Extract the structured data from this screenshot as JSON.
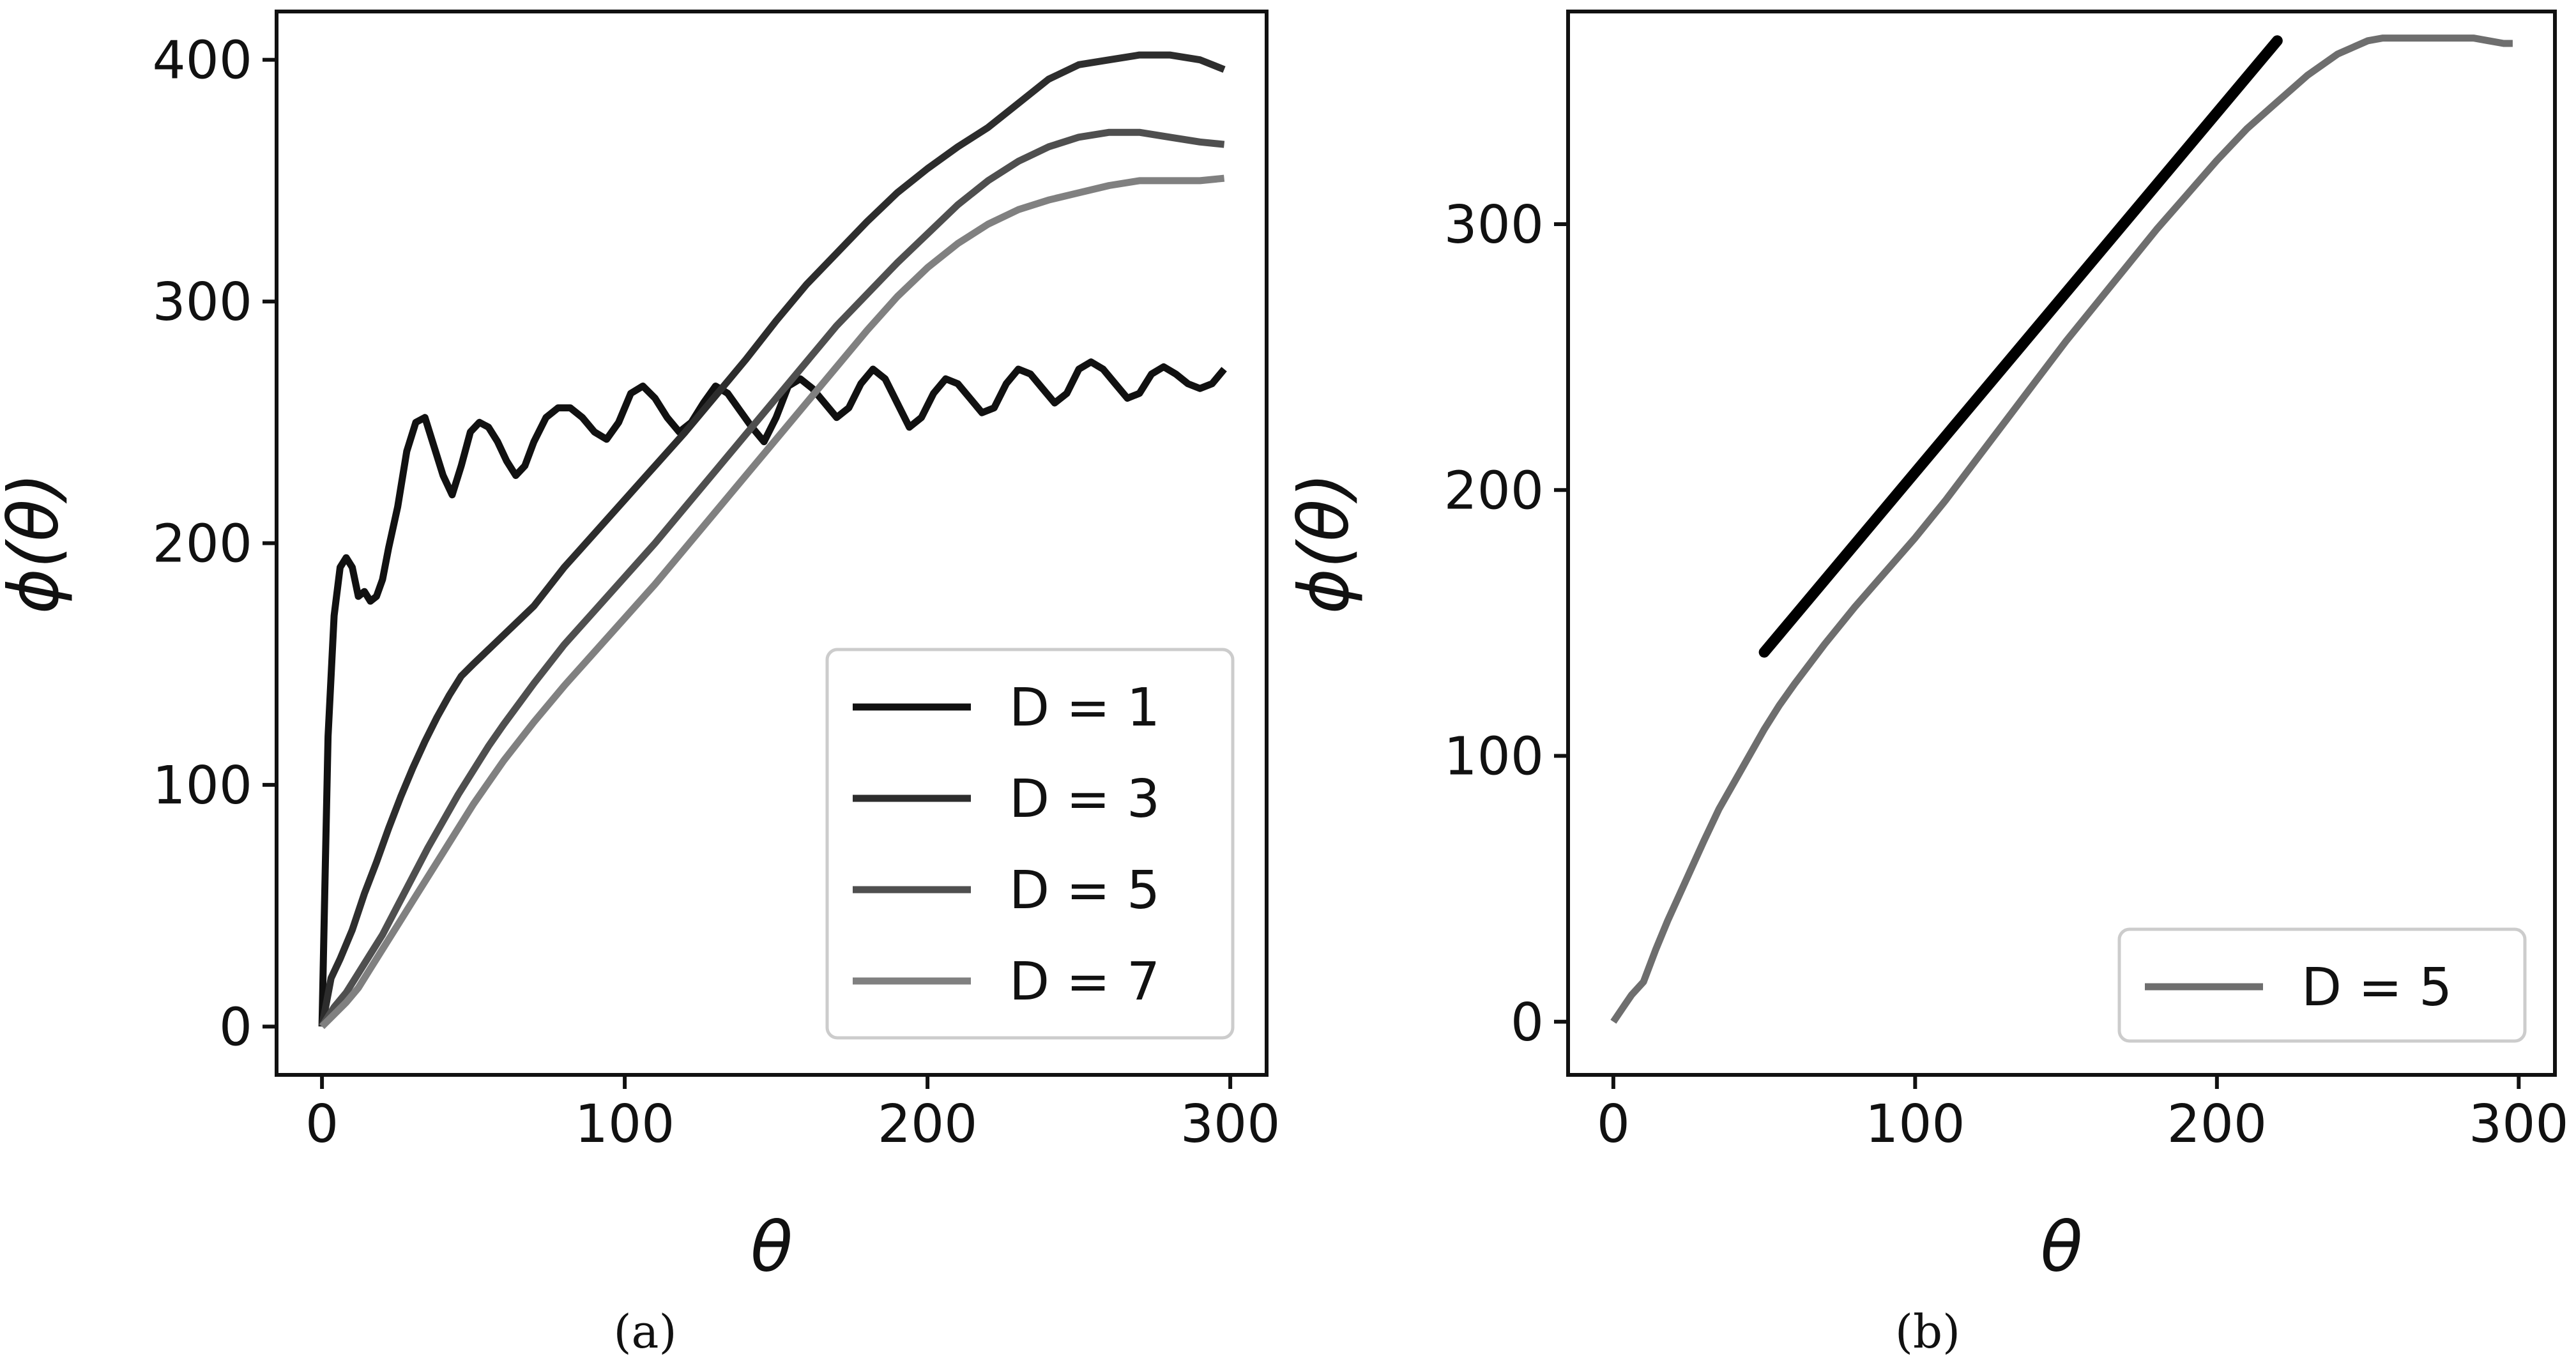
{
  "chart_data": [
    {
      "panel": "a",
      "caption": "(a)",
      "type": "line",
      "xlabel": "θ",
      "ylabel": "ϕ(θ)",
      "xlim": [
        -15,
        312
      ],
      "ylim": [
        -20,
        420
      ],
      "xticks": [
        0,
        100,
        200,
        300
      ],
      "xtick_labels": [
        "0",
        "100",
        "200",
        "300"
      ],
      "yticks": [
        0,
        100,
        200,
        300,
        400
      ],
      "ytick_labels": [
        "0",
        "100",
        "200",
        "300",
        "400"
      ],
      "legend": "lower-right",
      "series": [
        {
          "name": "D = 1",
          "color": "#111111",
          "x": [
            0,
            1,
            2,
            4,
            6,
            8,
            10,
            12,
            14,
            16,
            18,
            20,
            22,
            25,
            28,
            31,
            34,
            37,
            40,
            43,
            46,
            49,
            52,
            55,
            58,
            61,
            64,
            67,
            70,
            74,
            78,
            82,
            86,
            90,
            94,
            98,
            102,
            106,
            110,
            114,
            118,
            122,
            126,
            130,
            134,
            138,
            142,
            146,
            150,
            154,
            158,
            162,
            166,
            170,
            174,
            178,
            182,
            186,
            190,
            194,
            198,
            202,
            206,
            210,
            214,
            218,
            222,
            226,
            230,
            234,
            238,
            242,
            246,
            250,
            254,
            258,
            262,
            266,
            270,
            274,
            278,
            282,
            286,
            290,
            294,
            298
          ],
          "y": [
            0,
            60,
            120,
            170,
            190,
            194,
            190,
            178,
            180,
            176,
            178,
            185,
            198,
            215,
            238,
            250,
            252,
            240,
            228,
            220,
            232,
            246,
            250,
            248,
            242,
            234,
            228,
            232,
            242,
            252,
            256,
            256,
            252,
            246,
            243,
            250,
            262,
            265,
            260,
            252,
            246,
            250,
            258,
            265,
            262,
            255,
            248,
            242,
            252,
            265,
            268,
            264,
            258,
            252,
            256,
            266,
            272,
            268,
            258,
            248,
            252,
            262,
            268,
            266,
            260,
            254,
            256,
            266,
            272,
            270,
            264,
            258,
            262,
            272,
            275,
            272,
            266,
            260,
            262,
            270,
            273,
            270,
            266,
            264,
            266,
            272
          ]
        },
        {
          "name": "D = 3",
          "color": "#2d2d2d",
          "x": [
            0,
            3,
            6,
            10,
            14,
            18,
            22,
            26,
            30,
            34,
            38,
            42,
            46,
            50,
            55,
            60,
            65,
            70,
            75,
            80,
            85,
            90,
            95,
            100,
            110,
            120,
            130,
            140,
            150,
            160,
            170,
            180,
            190,
            200,
            210,
            220,
            230,
            240,
            250,
            260,
            270,
            280,
            290,
            298
          ],
          "y": [
            0,
            20,
            28,
            40,
            55,
            68,
            82,
            95,
            107,
            118,
            128,
            137,
            145,
            150,
            156,
            162,
            168,
            174,
            182,
            190,
            197,
            204,
            211,
            218,
            232,
            246,
            261,
            276,
            292,
            307,
            320,
            333,
            345,
            355,
            364,
            372,
            382,
            392,
            398,
            400,
            402,
            402,
            400,
            396
          ]
        },
        {
          "name": "D = 5",
          "color": "#4f4f4f",
          "x": [
            0,
            4,
            8,
            12,
            16,
            20,
            25,
            30,
            35,
            40,
            45,
            50,
            55,
            60,
            70,
            80,
            90,
            100,
            110,
            120,
            130,
            140,
            150,
            160,
            170,
            180,
            190,
            200,
            210,
            220,
            230,
            240,
            250,
            260,
            270,
            280,
            290,
            298
          ],
          "y": [
            0,
            8,
            14,
            22,
            30,
            38,
            50,
            62,
            74,
            85,
            96,
            106,
            116,
            125,
            142,
            158,
            172,
            186,
            200,
            215,
            230,
            245,
            260,
            275,
            290,
            303,
            316,
            328,
            340,
            350,
            358,
            364,
            368,
            370,
            370,
            368,
            366,
            365
          ]
        },
        {
          "name": "D = 7",
          "color": "#808080",
          "x": [
            0,
            4,
            8,
            12,
            16,
            20,
            25,
            30,
            35,
            40,
            45,
            50,
            55,
            60,
            70,
            80,
            90,
            100,
            110,
            120,
            130,
            140,
            150,
            160,
            170,
            180,
            190,
            200,
            210,
            220,
            230,
            240,
            250,
            260,
            270,
            280,
            290,
            298
          ],
          "y": [
            0,
            5,
            10,
            16,
            24,
            32,
            42,
            52,
            62,
            72,
            82,
            92,
            101,
            110,
            126,
            141,
            155,
            169,
            183,
            198,
            213,
            228,
            243,
            258,
            273,
            288,
            302,
            314,
            324,
            332,
            338,
            342,
            345,
            348,
            350,
            350,
            350,
            351
          ]
        }
      ]
    },
    {
      "panel": "b",
      "caption": "(b)",
      "type": "line",
      "xlabel": "θ",
      "ylabel": "ϕ(θ)",
      "xlim": [
        -15,
        312
      ],
      "ylim": [
        -20,
        380
      ],
      "xticks": [
        0,
        100,
        200,
        300
      ],
      "xtick_labels": [
        "0",
        "100",
        "200",
        "300"
      ],
      "yticks": [
        0,
        100,
        200,
        300
      ],
      "ytick_labels": [
        "0",
        "100",
        "200",
        "300"
      ],
      "legend": "lower-right",
      "series": [
        {
          "name": "D = 5",
          "color": "#6e6e6e",
          "x": [
            0,
            3,
            6,
            10,
            14,
            18,
            22,
            26,
            30,
            35,
            40,
            45,
            50,
            55,
            60,
            70,
            80,
            90,
            100,
            110,
            120,
            130,
            140,
            150,
            160,
            170,
            180,
            190,
            200,
            210,
            220,
            230,
            240,
            250,
            255,
            260,
            265,
            270,
            275,
            280,
            285,
            290,
            295,
            298
          ],
          "y": [
            0,
            5,
            10,
            15,
            27,
            38,
            48,
            58,
            68,
            80,
            90,
            100,
            110,
            119,
            127,
            142,
            156,
            169,
            182,
            196,
            211,
            226,
            241,
            256,
            270,
            284,
            298,
            311,
            324,
            336,
            346,
            356,
            364,
            369,
            370,
            370,
            370,
            370,
            370,
            370,
            370,
            369,
            368,
            368
          ]
        },
        {
          "name": "",
          "color": "#000000",
          "x": [
            50,
            220
          ],
          "y": [
            139,
            369
          ]
        }
      ]
    }
  ]
}
